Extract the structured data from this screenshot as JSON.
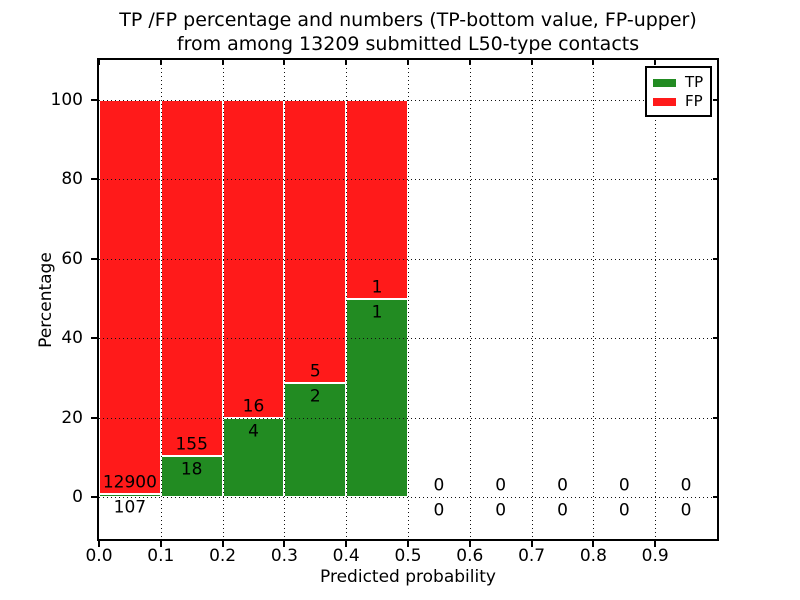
{
  "figure": {
    "background": "#ffffff",
    "frame_color": "#000000"
  },
  "chart_data": {
    "type": "bar",
    "stacked": true,
    "orientation": "vertical",
    "title_line1": "TP /FP percentage and numbers (TP-bottom value, FP-upper)",
    "title_line2": "from among 13209 submitted L50-type contacts",
    "xlabel": "Predicted probability",
    "ylabel": "Percentage",
    "xlim": [
      0.0,
      1.0
    ],
    "ylim": [
      -10.6,
      110.1
    ],
    "grid": true,
    "grid_style": "dotted",
    "xticks": [
      {
        "value": 0.0,
        "label": "0.0"
      },
      {
        "value": 0.1,
        "label": "0.1"
      },
      {
        "value": 0.2,
        "label": "0.2"
      },
      {
        "value": 0.3,
        "label": "0.3"
      },
      {
        "value": 0.4,
        "label": "0.4"
      },
      {
        "value": 0.5,
        "label": "0.5"
      },
      {
        "value": 0.6,
        "label": "0.6"
      },
      {
        "value": 0.7,
        "label": "0.7"
      },
      {
        "value": 0.8,
        "label": "0.8"
      },
      {
        "value": 0.9,
        "label": "0.9"
      }
    ],
    "yticks": [
      {
        "value": 0,
        "label": "0"
      },
      {
        "value": 20,
        "label": "20"
      },
      {
        "value": 40,
        "label": "40"
      },
      {
        "value": 60,
        "label": "60"
      },
      {
        "value": 80,
        "label": "80"
      },
      {
        "value": 100,
        "label": "100"
      }
    ],
    "legend": {
      "position": "upper-right",
      "entries": [
        {
          "label": "TP",
          "color": "#228b22"
        },
        {
          "label": "FP",
          "color": "#ff1a1a"
        }
      ]
    },
    "colors": {
      "tp": "#228b22",
      "fp": "#ff1a1a",
      "bar_edge": "#ffffff"
    },
    "bins": [
      {
        "x0": 0.0,
        "x1": 0.1,
        "tp_count": 107,
        "fp_count": 12900,
        "tp_pct": 0.82,
        "fp_pct": 99.18
      },
      {
        "x0": 0.1,
        "x1": 0.2,
        "tp_count": 18,
        "fp_count": 155,
        "tp_pct": 10.4,
        "fp_pct": 89.6
      },
      {
        "x0": 0.2,
        "x1": 0.3,
        "tp_count": 4,
        "fp_count": 16,
        "tp_pct": 20.0,
        "fp_pct": 80.0
      },
      {
        "x0": 0.3,
        "x1": 0.4,
        "tp_count": 2,
        "fp_count": 5,
        "tp_pct": 28.6,
        "fp_pct": 71.4
      },
      {
        "x0": 0.4,
        "x1": 0.5,
        "tp_count": 1,
        "fp_count": 1,
        "tp_pct": 50.0,
        "fp_pct": 50.0
      },
      {
        "x0": 0.5,
        "x1": 0.6,
        "tp_count": 0,
        "fp_count": 0,
        "tp_pct": 0,
        "fp_pct": 0
      },
      {
        "x0": 0.6,
        "x1": 0.7,
        "tp_count": 0,
        "fp_count": 0,
        "tp_pct": 0,
        "fp_pct": 0
      },
      {
        "x0": 0.7,
        "x1": 0.8,
        "tp_count": 0,
        "fp_count": 0,
        "tp_pct": 0,
        "fp_pct": 0
      },
      {
        "x0": 0.8,
        "x1": 0.9,
        "tp_count": 0,
        "fp_count": 0,
        "tp_pct": 0,
        "fp_pct": 0
      },
      {
        "x0": 0.9,
        "x1": 1.0,
        "tp_count": 0,
        "fp_count": 0,
        "tp_pct": 0,
        "fp_pct": 0
      }
    ]
  }
}
